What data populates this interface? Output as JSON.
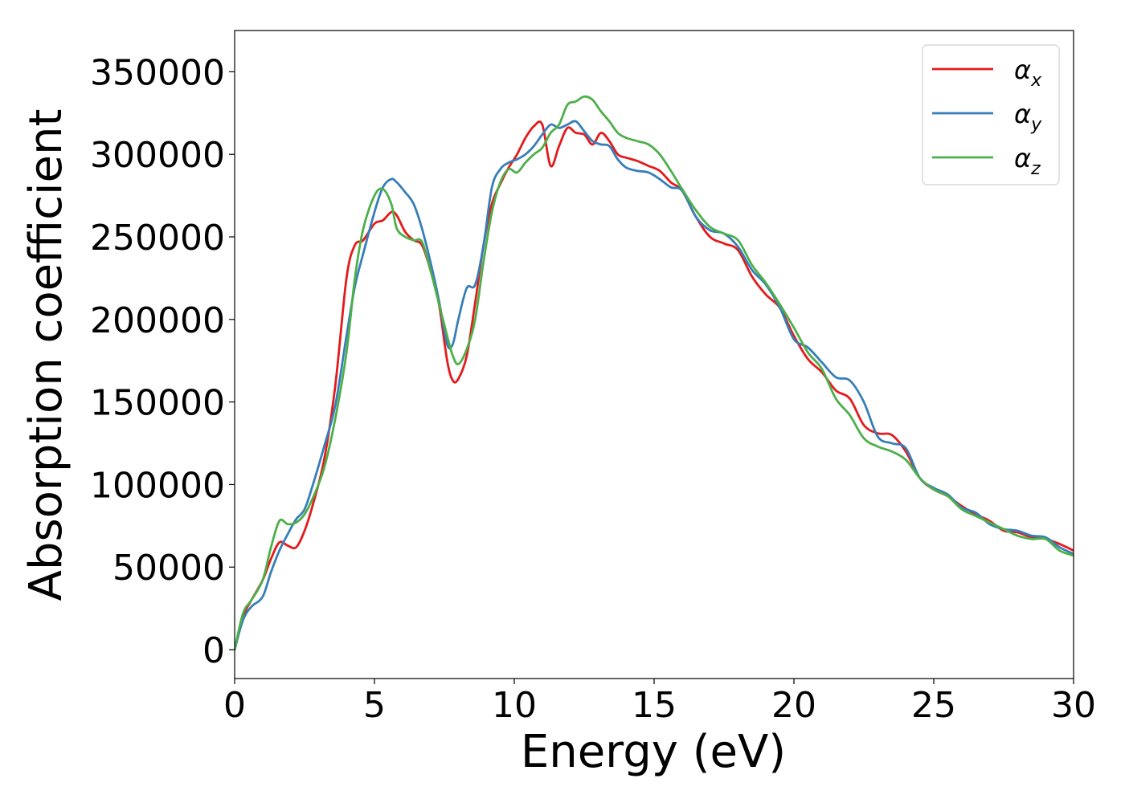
{
  "chart_data": {
    "type": "line",
    "title": "",
    "xlabel": "Energy (eV)",
    "ylabel": "Absorption coefficient",
    "xlim": [
      0,
      30
    ],
    "ylim": [
      -17500,
      375000
    ],
    "xticks": [
      0,
      5,
      10,
      15,
      20,
      25,
      30
    ],
    "yticks": [
      0,
      50000,
      100000,
      150000,
      200000,
      250000,
      300000,
      350000
    ],
    "grid": false,
    "legend_position": "top-right",
    "x": [
      0,
      0.3,
      0.6,
      1.0,
      1.3,
      1.6,
      1.9,
      2.2,
      2.5,
      2.8,
      3.2,
      3.6,
      4.0,
      4.3,
      4.6,
      5.0,
      5.3,
      5.6,
      5.8,
      6.1,
      6.4,
      6.7,
      7.0,
      7.3,
      7.6,
      7.8,
      8.0,
      8.3,
      8.6,
      8.9,
      9.2,
      9.5,
      9.8,
      10.1,
      10.4,
      10.7,
      11.0,
      11.3,
      11.6,
      11.9,
      12.2,
      12.5,
      12.8,
      13.1,
      13.4,
      13.7,
      14.0,
      14.4,
      14.8,
      15.2,
      15.6,
      16.0,
      16.5,
      17.0,
      17.5,
      18.0,
      18.5,
      19.0,
      19.5,
      20.0,
      20.5,
      21.0,
      21.5,
      22.0,
      22.5,
      23.0,
      23.5,
      24.0,
      24.5,
      25.0,
      25.5,
      26.0,
      26.5,
      27.0,
      27.5,
      28.0,
      28.5,
      29.0,
      29.5,
      30.0
    ],
    "series": [
      {
        "name": "αx",
        "label_base": "α",
        "label_sub": "x",
        "color": "#e41a1c",
        "values": [
          0,
          20000,
          30000,
          42000,
          55000,
          65000,
          63000,
          62000,
          72000,
          88000,
          115000,
          160000,
          225000,
          245000,
          248000,
          258000,
          260000,
          265000,
          263000,
          253000,
          248000,
          245000,
          230000,
          210000,
          175000,
          163000,
          164000,
          178000,
          210000,
          245000,
          270000,
          282000,
          292000,
          300000,
          310000,
          317000,
          318000,
          293000,
          305000,
          316000,
          313000,
          312000,
          306000,
          313000,
          308000,
          300000,
          298000,
          296000,
          293000,
          290000,
          283000,
          278000,
          262000,
          250000,
          246000,
          242000,
          226000,
          215000,
          207000,
          190000,
          176000,
          168000,
          157000,
          152000,
          136000,
          131000,
          130000,
          120000,
          104000,
          97000,
          93000,
          87000,
          82000,
          78000,
          72000,
          71000,
          68000,
          67000,
          64000,
          60000
        ]
      },
      {
        "name": "αy",
        "label_base": "α",
        "label_sub": "y",
        "color": "#377eb8",
        "values": [
          0,
          18000,
          26000,
          32000,
          47000,
          60000,
          70000,
          79000,
          85000,
          100000,
          123000,
          148000,
          190000,
          220000,
          240000,
          265000,
          280000,
          285000,
          283000,
          277000,
          270000,
          255000,
          235000,
          212000,
          185000,
          185000,
          200000,
          219000,
          221000,
          245000,
          280000,
          291000,
          295000,
          297000,
          300000,
          305000,
          312000,
          318000,
          316000,
          318000,
          320000,
          314000,
          308000,
          306000,
          305000,
          297000,
          292000,
          290000,
          289000,
          285000,
          280000,
          278000,
          262000,
          254000,
          252000,
          244000,
          230000,
          221000,
          207000,
          188000,
          183000,
          174000,
          165000,
          163000,
          150000,
          129000,
          125000,
          122000,
          104000,
          98000,
          94000,
          86000,
          83000,
          76000,
          73000,
          72000,
          69000,
          68000,
          62000,
          58000
        ]
      },
      {
        "name": "αz",
        "label_base": "α",
        "label_sub": "z",
        "color": "#4daf4a",
        "values": [
          0,
          22000,
          30000,
          42000,
          62000,
          78000,
          76000,
          77000,
          82000,
          92000,
          110000,
          140000,
          180000,
          225000,
          255000,
          275000,
          279000,
          270000,
          255000,
          250000,
          248000,
          247000,
          230000,
          210000,
          190000,
          178000,
          173000,
          182000,
          200000,
          235000,
          265000,
          283000,
          291000,
          289000,
          295000,
          300000,
          304000,
          313000,
          318000,
          330000,
          332000,
          335000,
          333000,
          326000,
          320000,
          313000,
          310000,
          308000,
          306000,
          300000,
          290000,
          279000,
          266000,
          256000,
          252000,
          248000,
          233000,
          222000,
          209000,
          195000,
          180000,
          170000,
          152000,
          142000,
          128000,
          123000,
          120000,
          115000,
          104000,
          97000,
          93000,
          85000,
          81000,
          77000,
          73000,
          69000,
          67000,
          67000,
          60000,
          57000
        ]
      }
    ]
  }
}
